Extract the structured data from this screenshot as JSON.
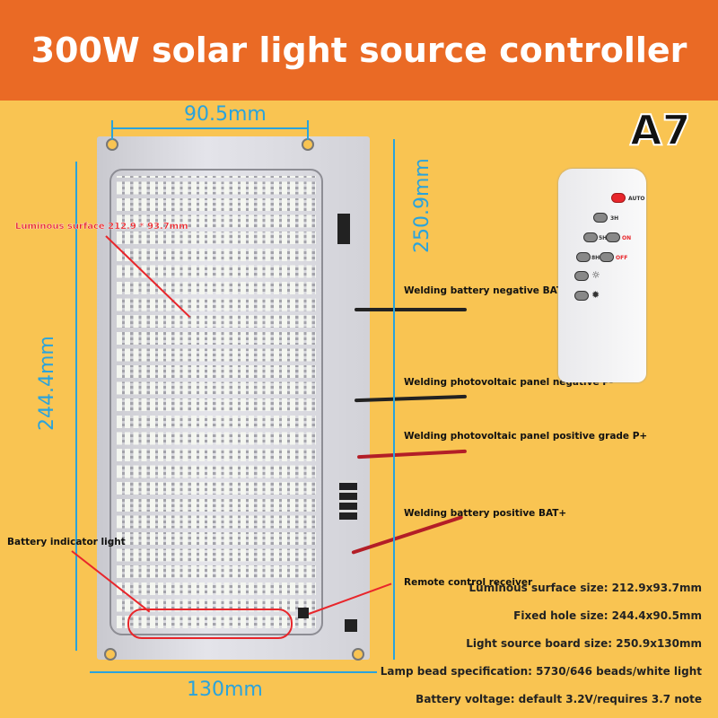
{
  "header": {
    "title": "300W solar light source controller"
  },
  "badge": "A7",
  "dimensions": {
    "top_width": "90.5mm",
    "right_height": "250.9mm",
    "left_height": "244.4mm",
    "bottom_width": "130mm"
  },
  "callouts": {
    "luminous_surface": "Luminous surface 212.9 * 93.7mm",
    "battery_indicator": "Battery indicator light",
    "battery_negative": "Welding battery negative BAT-",
    "pv_negative": "Welding photovoltaic panel negative P-",
    "pv_positive": "Welding photovoltaic panel positive grade P+",
    "battery_positive": "Welding battery positive BAT+",
    "remote_receiver": "Remote control receiver"
  },
  "specs": [
    "Luminous surface size: 212.9x93.7mm",
    "Fixed hole size: 244.4x90.5mm",
    "Light source board size: 250.9x130mm",
    "Lamp bead specification: 5730/646 beads/white light",
    "Battery voltage: default 3.2V/requires 3.7 note"
  ],
  "remote": {
    "auto": "AUTO",
    "3h": "3H",
    "5h": "5H",
    "on": "ON",
    "8h": "8H",
    "off": "OFF",
    "brightness_down": "☼",
    "brightness_up": "✹"
  },
  "colors": {
    "header": "#ea6a25",
    "background": "#f9c452",
    "dimension": "#2aa3dc",
    "callout": "#e8262b"
  }
}
